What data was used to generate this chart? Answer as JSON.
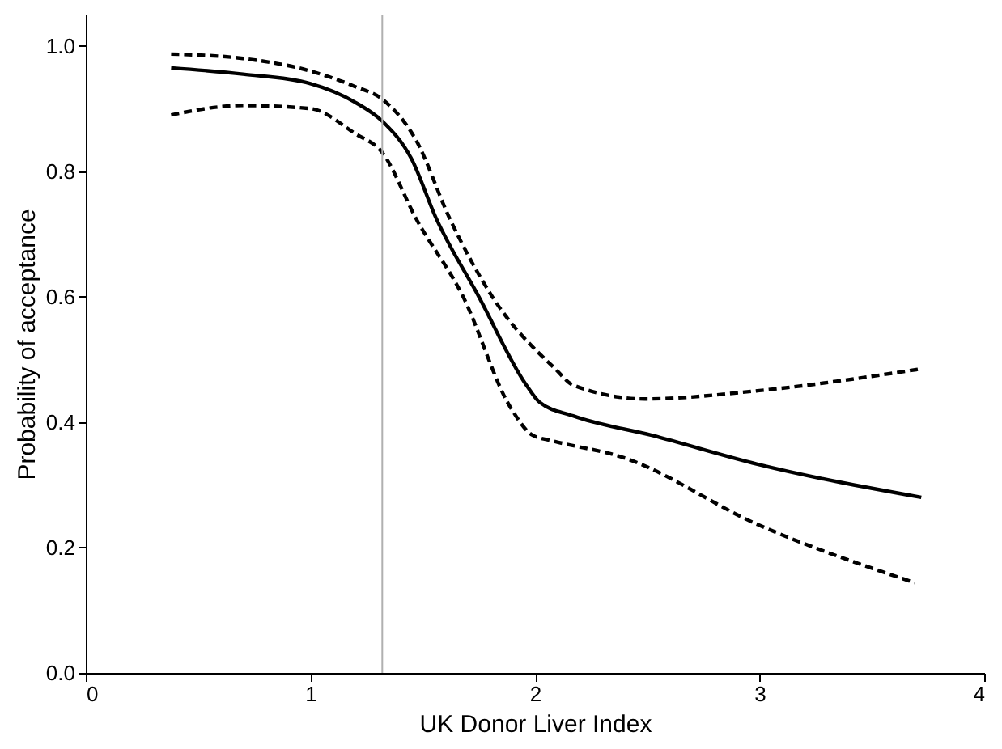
{
  "chart_data": {
    "type": "line",
    "xlabel": "UK Donor Liver Index",
    "ylabel": "Probability of acceptance",
    "xlim": [
      0,
      4
    ],
    "xticks": [
      0,
      1,
      2,
      3,
      4
    ],
    "ylim": [
      0,
      1.05
    ],
    "yticks": [
      {
        "value": 0,
        "label": "0.0"
      },
      0.2,
      0.4,
      0.6,
      0.8,
      {
        "value": 1,
        "label": "1.0"
      }
    ],
    "grid": false,
    "ref_lines": [
      {
        "axis": "x",
        "value": 1.32,
        "color": "#b0b0b0",
        "line_style": "solid"
      }
    ],
    "series": [
      {
        "color": "#000000",
        "line_style": "solid",
        "x": [
          0.38,
          0.7,
          1.0,
          1.2,
          1.32,
          1.45,
          1.56,
          1.75,
          1.96,
          2.02,
          2.17,
          2.52,
          2.99,
          3.72
        ],
        "values": [
          0.965,
          0.955,
          0.94,
          0.91,
          0.88,
          0.82,
          0.725,
          0.6,
          0.46,
          0.432,
          0.41,
          0.379,
          0.333,
          0.28
        ]
      },
      {
        "color": "#000000",
        "line_style": "dashed",
        "x": [
          0.38,
          0.7,
          1.0,
          1.2,
          1.32,
          1.47,
          1.62,
          1.81,
          2.09,
          2.17,
          2.49,
          2.99,
          3.72
        ],
        "values": [
          0.987,
          0.98,
          0.96,
          0.935,
          0.915,
          0.85,
          0.725,
          0.6,
          0.485,
          0.459,
          0.437,
          0.45,
          0.485
        ]
      },
      {
        "color": "#000000",
        "line_style": "dashed",
        "x": [
          0.38,
          0.7,
          1.0,
          1.2,
          1.32,
          1.47,
          1.68,
          1.89,
          1.99,
          2.08,
          2.39,
          2.99,
          3.69
        ],
        "values": [
          0.89,
          0.905,
          0.9,
          0.86,
          0.83,
          0.725,
          0.6,
          0.424,
          0.379,
          0.37,
          0.344,
          0.237,
          0.144
        ]
      }
    ]
  }
}
